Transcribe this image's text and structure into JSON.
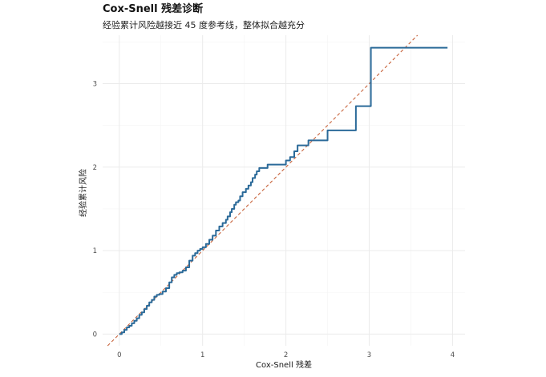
{
  "chart_data": {
    "type": "line",
    "title": "Cox-Snell 残差诊断",
    "subtitle": "经验累计风险越接近 45 度参考线，整体拟合越充分",
    "xlabel": "Cox-Snell 残差",
    "ylabel": "经验累计风险",
    "xlim": [
      -0.2,
      4.15
    ],
    "ylim": [
      -0.14,
      3.58
    ],
    "x_ticks": [
      0,
      1,
      2,
      3,
      4
    ],
    "y_ticks": [
      0,
      1,
      2,
      3
    ],
    "grid": true,
    "reference_line": {
      "kind": "y = x",
      "style": "dashed",
      "color": "#c8643c"
    },
    "series": [
      {
        "color": "#2b6a99",
        "style": "step",
        "x": [
          0.0,
          0.03,
          0.06,
          0.09,
          0.12,
          0.15,
          0.18,
          0.21,
          0.24,
          0.27,
          0.3,
          0.33,
          0.36,
          0.39,
          0.42,
          0.45,
          0.48,
          0.52,
          0.56,
          0.6,
          0.63,
          0.66,
          0.69,
          0.72,
          0.76,
          0.8,
          0.84,
          0.88,
          0.91,
          0.94,
          0.97,
          1.0,
          1.04,
          1.08,
          1.12,
          1.16,
          1.2,
          1.24,
          1.28,
          1.3,
          1.33,
          1.35,
          1.38,
          1.4,
          1.43,
          1.45,
          1.48,
          1.52,
          1.55,
          1.58,
          1.6,
          1.63,
          1.65,
          1.68,
          1.7,
          1.74,
          1.78,
          1.85,
          2.0,
          2.05,
          2.1,
          2.14,
          2.27,
          2.4,
          2.5,
          2.84,
          3.02,
          3.94
        ],
        "y": [
          0.0,
          0.02,
          0.05,
          0.08,
          0.1,
          0.13,
          0.16,
          0.19,
          0.23,
          0.26,
          0.3,
          0.34,
          0.38,
          0.41,
          0.45,
          0.47,
          0.48,
          0.51,
          0.55,
          0.62,
          0.68,
          0.71,
          0.73,
          0.74,
          0.76,
          0.8,
          0.88,
          0.94,
          0.97,
          1.0,
          1.02,
          1.04,
          1.08,
          1.13,
          1.18,
          1.24,
          1.29,
          1.33,
          1.37,
          1.41,
          1.46,
          1.5,
          1.55,
          1.58,
          1.6,
          1.65,
          1.7,
          1.74,
          1.78,
          1.82,
          1.87,
          1.91,
          1.95,
          1.99,
          1.99,
          1.99,
          2.03,
          2.03,
          2.08,
          2.12,
          2.19,
          2.26,
          2.32,
          2.32,
          2.44,
          2.73,
          3.43,
          3.43
        ]
      }
    ]
  }
}
